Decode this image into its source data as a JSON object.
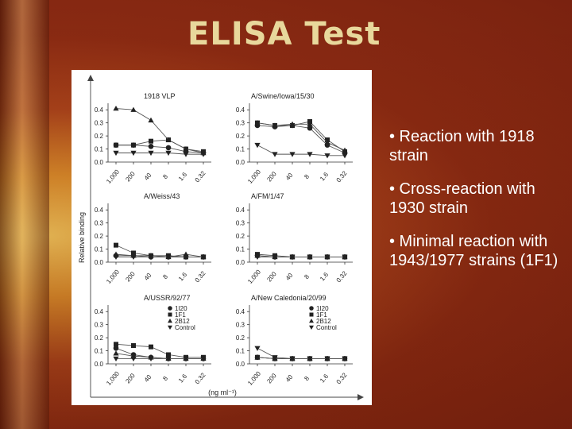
{
  "slide": {
    "title": "ELISA Test",
    "bullets": [
      "• Reaction with 1918 strain",
      "• Cross-reaction with 1930 strain",
      "• Minimal reaction with 1943/1977 strains (1F1)"
    ]
  },
  "figure": {
    "ylabel": "Relative binding",
    "xlabel": "(ng ml⁻¹)"
  },
  "chart_data": [
    {
      "type": "line",
      "title": "1918 VLP",
      "categories": [
        "1,000",
        "200",
        "40",
        "8",
        "1.6",
        "0.32"
      ],
      "yticks": [
        "0.0",
        "0.1",
        "0.2",
        "0.3",
        "0.4"
      ],
      "ylim": [
        0,
        0.45
      ],
      "series": [
        {
          "name": "1I20",
          "values": [
            0.13,
            0.13,
            0.12,
            0.11,
            0.08,
            0.07
          ]
        },
        {
          "name": "1F1",
          "values": [
            0.13,
            0.13,
            0.16,
            0.17,
            0.1,
            0.08
          ]
        },
        {
          "name": "2B12",
          "values": [
            0.41,
            0.4,
            0.32,
            0.17,
            0.1,
            0.07
          ]
        },
        {
          "name": "Control",
          "values": [
            0.07,
            0.07,
            0.07,
            0.07,
            0.06,
            0.06
          ]
        }
      ]
    },
    {
      "type": "line",
      "title": "A/Swine/Iowa/15/30",
      "categories": [
        "1,000",
        "200",
        "40",
        "8",
        "1.6",
        "0.32"
      ],
      "yticks": [
        "0.0",
        "0.1",
        "0.2",
        "0.3",
        "0.4"
      ],
      "ylim": [
        0,
        0.45
      ],
      "series": [
        {
          "name": "1I20",
          "values": [
            0.28,
            0.27,
            0.28,
            0.26,
            0.13,
            0.07
          ]
        },
        {
          "name": "1F1",
          "values": [
            0.3,
            0.28,
            0.28,
            0.31,
            0.17,
            0.08
          ]
        },
        {
          "name": "2B12",
          "values": [
            0.3,
            0.28,
            0.29,
            0.29,
            0.15,
            0.09
          ]
        },
        {
          "name": "Control",
          "values": [
            0.13,
            0.06,
            0.06,
            0.06,
            0.05,
            0.05
          ]
        }
      ]
    },
    {
      "type": "line",
      "title": "A/Weiss/43",
      "categories": [
        "1,000",
        "200",
        "40",
        "8",
        "1.6",
        "0.32"
      ],
      "yticks": [
        "0.0",
        "0.1",
        "0.2",
        "0.3",
        "0.4"
      ],
      "ylim": [
        0,
        0.45
      ],
      "series": [
        {
          "name": "1I20",
          "values": [
            0.05,
            0.05,
            0.04,
            0.04,
            0.04,
            0.04
          ]
        },
        {
          "name": "1F1",
          "values": [
            0.13,
            0.07,
            0.05,
            0.05,
            0.04,
            0.04
          ]
        },
        {
          "name": "2B12",
          "values": [
            0.06,
            0.05,
            0.05,
            0.04,
            0.06,
            0.04
          ]
        },
        {
          "name": "Control",
          "values": [
            0.04,
            0.04,
            0.04,
            0.04,
            0.04,
            0.04
          ]
        }
      ]
    },
    {
      "type": "line",
      "title": "A/FM/1/47",
      "categories": [
        "1,000",
        "200",
        "40",
        "8",
        "1.6",
        "0.32"
      ],
      "yticks": [
        "0.0",
        "0.1",
        "0.2",
        "0.3",
        "0.4"
      ],
      "ylim": [
        0,
        0.45
      ],
      "series": [
        {
          "name": "1I20",
          "values": [
            0.05,
            0.04,
            0.04,
            0.04,
            0.04,
            0.04
          ]
        },
        {
          "name": "1F1",
          "values": [
            0.06,
            0.05,
            0.04,
            0.04,
            0.04,
            0.04
          ]
        },
        {
          "name": "2B12",
          "values": [
            0.05,
            0.04,
            0.04,
            0.04,
            0.04,
            0.04
          ]
        },
        {
          "name": "Control",
          "values": [
            0.04,
            0.04,
            0.04,
            0.04,
            0.04,
            0.04
          ]
        }
      ]
    },
    {
      "type": "line",
      "title": "A/USSR/92/77",
      "categories": [
        "1,000",
        "200",
        "40",
        "8",
        "1.6",
        "0.32"
      ],
      "yticks": [
        "0.0",
        "0.1",
        "0.2",
        "0.3",
        "0.4"
      ],
      "ylim": [
        0,
        0.45
      ],
      "series": [
        {
          "name": "1I20",
          "values": [
            0.12,
            0.07,
            0.05,
            0.04,
            0.04,
            0.04
          ]
        },
        {
          "name": "1F1",
          "values": [
            0.15,
            0.14,
            0.13,
            0.07,
            0.05,
            0.05
          ]
        },
        {
          "name": "2B12",
          "values": [
            0.08,
            0.06,
            0.05,
            0.04,
            0.04,
            0.04
          ]
        },
        {
          "name": "Control",
          "values": [
            0.04,
            0.04,
            0.04,
            0.04,
            0.04,
            0.04
          ]
        }
      ],
      "legend": {
        "entries": [
          "1I20",
          "1F1",
          "2B12",
          "Control"
        ],
        "placement": "top-right"
      }
    },
    {
      "type": "line",
      "title": "A/New Caledonia/20/99",
      "categories": [
        "1,000",
        "200",
        "40",
        "8",
        "1.6",
        "0.32"
      ],
      "yticks": [
        "0.0",
        "0.1",
        "0.2",
        "0.3",
        "0.4"
      ],
      "ylim": [
        0,
        0.45
      ],
      "series": [
        {
          "name": "1I20",
          "values": [
            0.05,
            0.04,
            0.04,
            0.04,
            0.04,
            0.04
          ]
        },
        {
          "name": "1F1",
          "values": [
            0.05,
            0.04,
            0.04,
            0.04,
            0.04,
            0.04
          ]
        },
        {
          "name": "2B12",
          "values": [
            0.05,
            0.04,
            0.04,
            0.04,
            0.04,
            0.04
          ]
        },
        {
          "name": "Control",
          "values": [
            0.12,
            0.05,
            0.04,
            0.04,
            0.04,
            0.04
          ]
        }
      ],
      "legend": {
        "entries": [
          "1I20",
          "1F1",
          "2B12",
          "Control"
        ],
        "placement": "top-right"
      }
    }
  ]
}
